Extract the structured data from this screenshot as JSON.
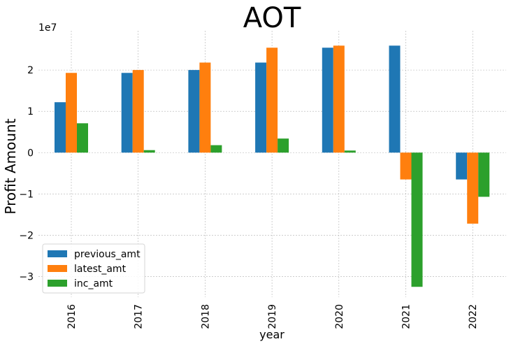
{
  "chart_data": {
    "type": "bar",
    "title": "AOT",
    "xlabel": "year",
    "ylabel": "Profit Amount",
    "y_offset_label": "1e7",
    "categories": [
      "2016",
      "2017",
      "2018",
      "2019",
      "2020",
      "2021",
      "2022"
    ],
    "series": [
      {
        "name": "previous_amt",
        "color": "#1f77b4",
        "values": [
          1.22,
          1.93,
          2.0,
          2.18,
          2.54,
          2.59,
          -0.65
        ]
      },
      {
        "name": "latest_amt",
        "color": "#ff7f0e",
        "values": [
          1.93,
          2.0,
          2.18,
          2.54,
          2.59,
          -0.65,
          -1.72
        ]
      },
      {
        "name": "inc_amt",
        "color": "#2ca02c",
        "values": [
          0.71,
          0.06,
          0.18,
          0.34,
          0.05,
          -3.25,
          -1.07
        ]
      }
    ],
    "y_unit_multiplier": 10000000,
    "ylim": [
      -3.5,
      2.95
    ],
    "yticks": [
      -3,
      -2,
      -1,
      0,
      1,
      2
    ],
    "ytick_labels": [
      "−3",
      "−2",
      "−1",
      "0",
      "1",
      "2"
    ],
    "grid": true,
    "legend_position": "lower-left"
  }
}
